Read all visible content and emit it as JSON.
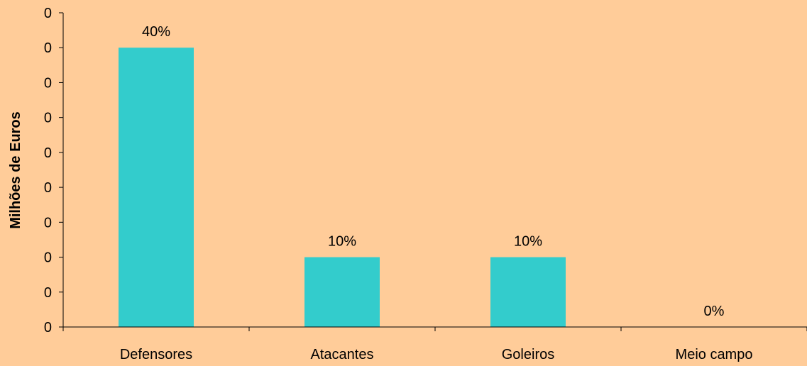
{
  "colors": {
    "background": "#ffcc99",
    "bar": "#33cccc",
    "axis": "#000000",
    "text": "#000000"
  },
  "chart_data": {
    "type": "bar",
    "title": "",
    "xlabel": "",
    "ylabel": "Milhões de Euros",
    "categories": [
      "Defensores",
      "Atacantes",
      "Goleiros",
      "Meio campo"
    ],
    "values": [
      0.4,
      0.1,
      0.1,
      0
    ],
    "data_labels": [
      "40%",
      "10%",
      "10%",
      "0%"
    ],
    "ylim": [
      0,
      0.45
    ],
    "yticks": [
      0,
      0.05,
      0.1,
      0.15,
      0.2,
      0.25,
      0.3,
      0.35,
      0.4,
      0.45
    ],
    "ytick_labels": [
      "0",
      "0",
      "0",
      "0",
      "0",
      "0",
      "0",
      "0",
      "0",
      "0"
    ],
    "grid": false,
    "legend": "none"
  }
}
